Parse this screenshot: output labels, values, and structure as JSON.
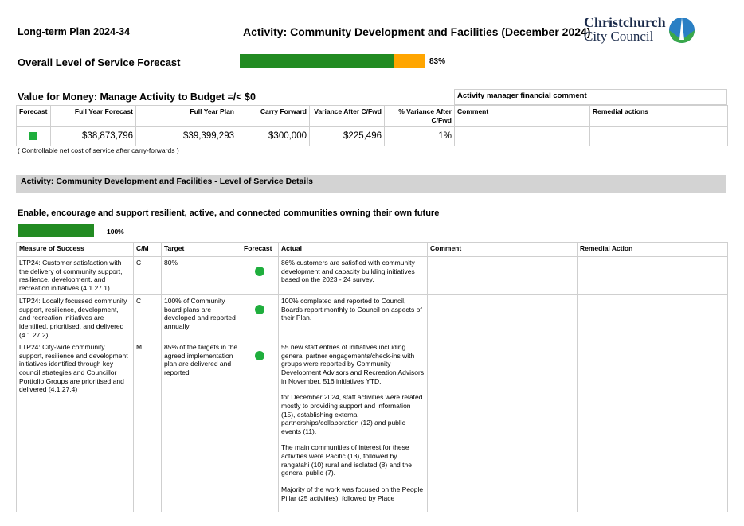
{
  "header": {
    "plan": "Long-term Plan 2024-34",
    "activity": "Activity: Community Development and Facilities (December 2024)",
    "logo_line1": "Christchurch",
    "logo_line2": "City Council"
  },
  "overall": {
    "label": "Overall Level of Service Forecast",
    "percent": "83%"
  },
  "value_for_money": {
    "title": "Value for Money: Manage Activity to Budget =/< $0",
    "comment_heading": "Activity manager financial comment",
    "columns": [
      "Forecast",
      "Full Year Forecast",
      "Full Year Plan",
      "Carry Forward",
      "Variance After C/Fwd",
      "% Variance After C/Fwd",
      "Comment",
      "Remedial actions"
    ],
    "row": [
      "",
      "$38,873,796",
      "$39,399,293",
      "$300,000",
      "$225,496",
      "1%",
      "",
      ""
    ],
    "note": "( Controllable net cost of service after carry-forwards )"
  },
  "details": {
    "heading": "Activity: Community Development and Facilities - Level of Service Details",
    "goal": "Enable, encourage and support resilient, active, and connected communities owning their own future",
    "goal_percent": "100%",
    "columns": [
      "Measure of Success",
      "C/M",
      "Target",
      "Forecast",
      "Actual",
      "Comment",
      "Remedial Action"
    ],
    "rows": [
      {
        "measure": "LTP24: Customer satisfaction with the delivery of community support, resilience, development, and recreation initiatives (4.1.27.1)",
        "cm": "C",
        "target": "80%",
        "actual": [
          "86% customers are satisfied with community development and capacity building initiatives based on the 2023 - 24 survey."
        ]
      },
      {
        "measure": "LTP24: Locally focussed community support, resilience, development, and recreation initiatives are identified, prioritised, and delivered (4.1.27.2)",
        "cm": "C",
        "target": "100% of Community board plans are developed and reported annually",
        "actual": [
          "100% completed and reported to Council, Boards report monthly to Council on aspects of their Plan."
        ]
      },
      {
        "measure": "LTP24: City-wide community support, resilience and development initiatives identified through key council strategies and Councillor Portfolio Groups are prioritised and delivered (4.1.27.4)",
        "cm": "M",
        "target": "85% of the targets in the agreed implementation plan are delivered and reported",
        "actual": [
          "55 new staff entries of initiatives including general partner engagements/check-ins with groups were reported by Community Development Advisors and Recreation Advisors in November. 516 initiatives YTD.",
          "for December 2024, staff activities were related mostly to providing support and information (15), establishing external partnerships/collaboration (12) and public events (11).",
          "The main communities of interest for these activities were Pacific (13), followed by rangatahi (10) rural and isolated (8) and the general public (7).",
          "Majority of the work was focused on the People Pillar (25 activities), followed by Place"
        ]
      }
    ]
  }
}
